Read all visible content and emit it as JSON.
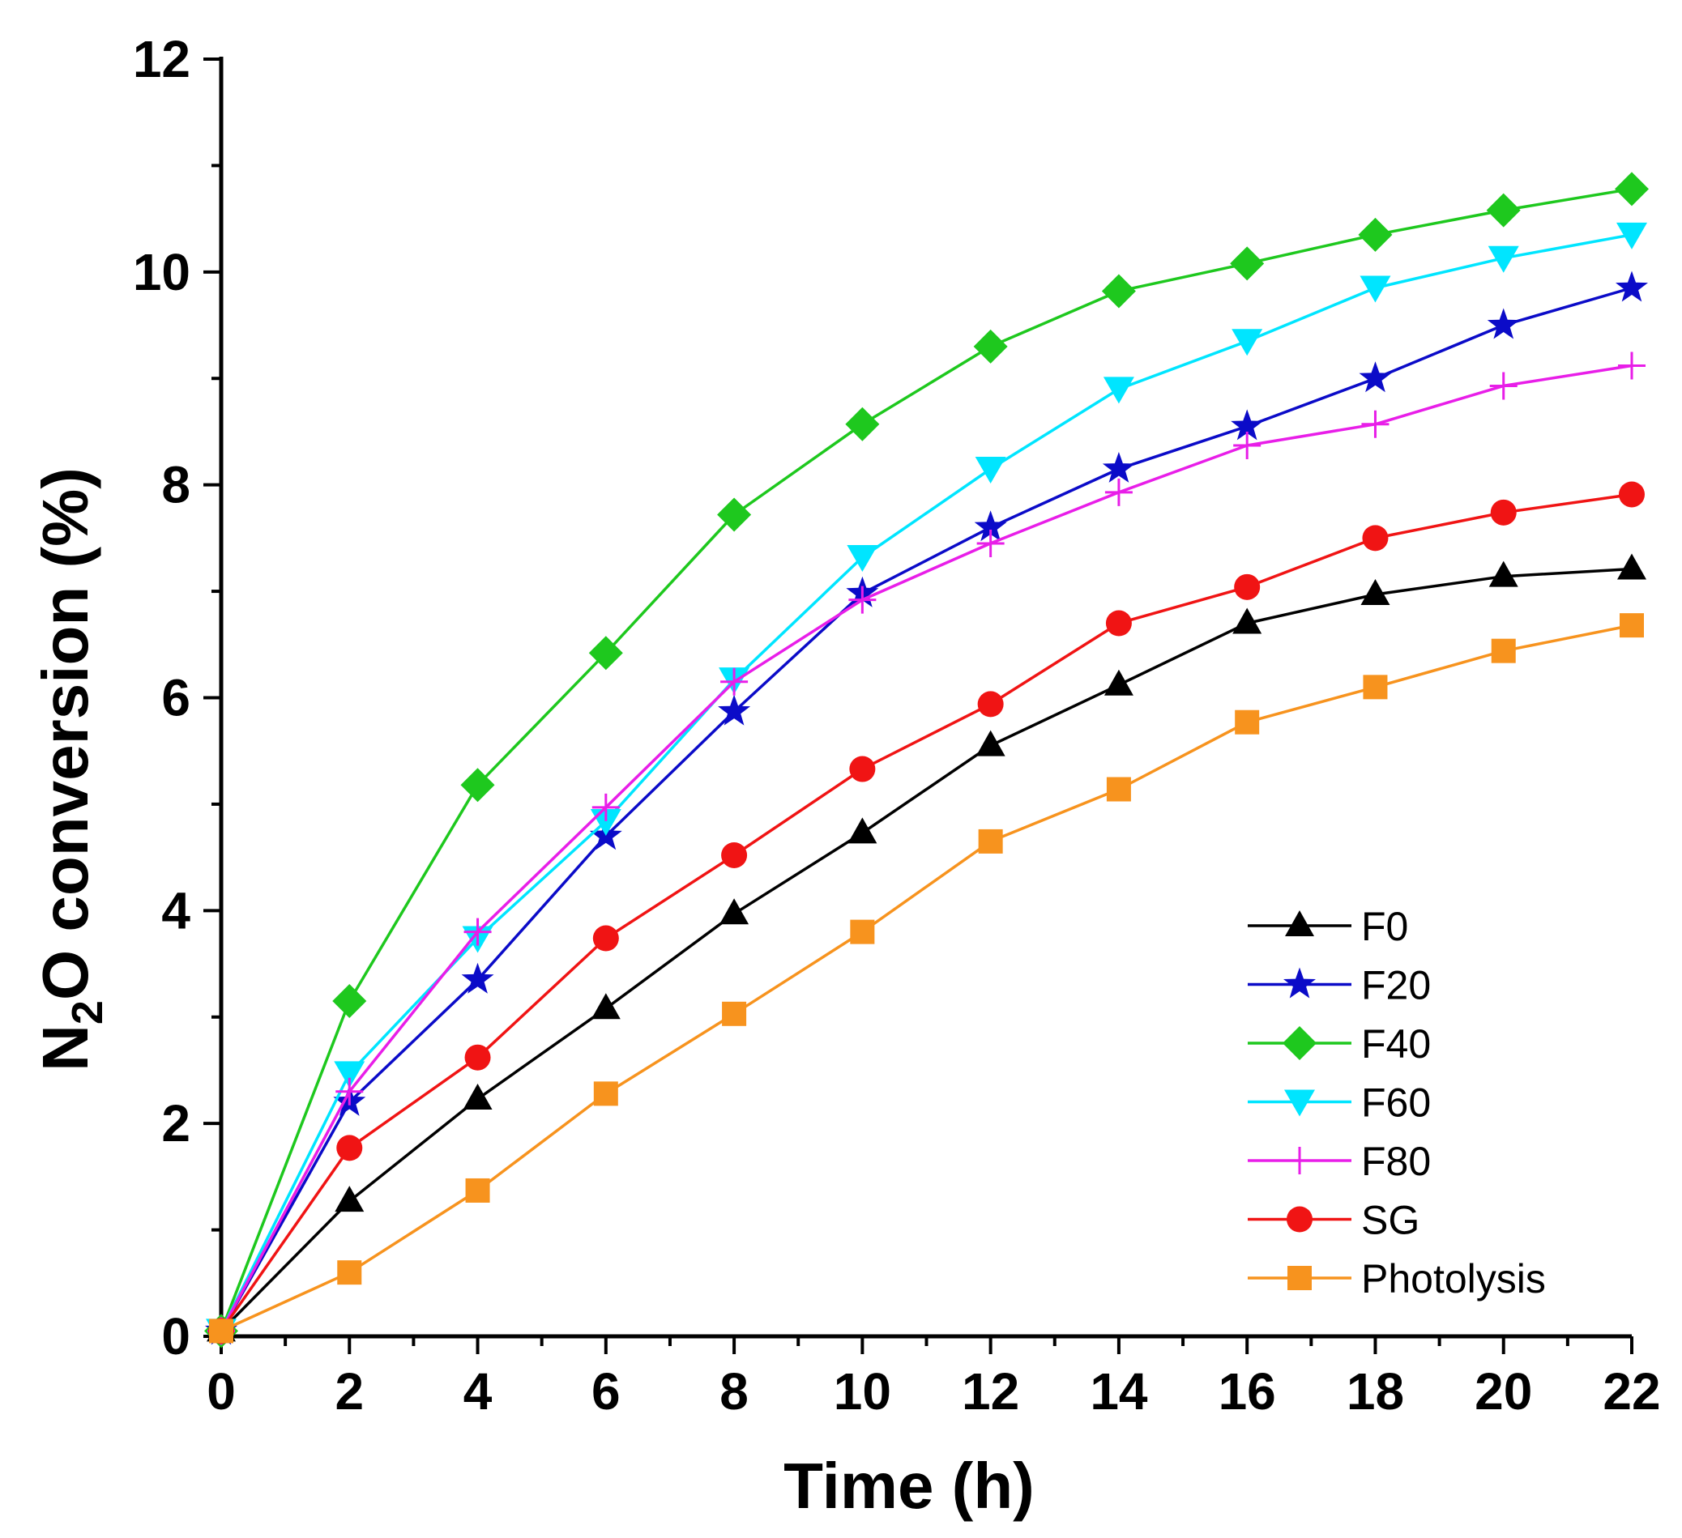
{
  "chart_data": {
    "type": "line",
    "title": "",
    "xlabel": "Time (h)",
    "ylabel": {
      "prefix": "N",
      "sub": "2",
      "suffix": "O conversion (%)"
    },
    "xlim": [
      0,
      22
    ],
    "ylim": [
      0,
      12
    ],
    "xticks": [
      "0",
      "2",
      "4",
      "6",
      "8",
      "10",
      "12",
      "14",
      "16",
      "18",
      "20",
      "22"
    ],
    "yticks": [
      "0",
      "2",
      "4",
      "6",
      "8",
      "10",
      "12"
    ],
    "grid": false,
    "legend_position": "bottom-right",
    "x": [
      0,
      2,
      4,
      6,
      8,
      10,
      12,
      14,
      16,
      18,
      20,
      22
    ],
    "series": [
      {
        "name": "F0",
        "color": "#000000",
        "marker": "triangle-up",
        "values": [
          0.05,
          1.27,
          2.23,
          3.08,
          3.97,
          4.73,
          5.55,
          6.12,
          6.7,
          6.97,
          7.14,
          7.21
        ]
      },
      {
        "name": "F20",
        "color": "#0b0bc8",
        "marker": "star",
        "values": [
          0.05,
          2.2,
          3.35,
          4.7,
          5.87,
          6.98,
          7.6,
          8.15,
          8.55,
          9.0,
          9.5,
          9.85
        ]
      },
      {
        "name": "F40",
        "color": "#1ec81e",
        "marker": "diamond",
        "values": [
          0.05,
          3.15,
          5.18,
          6.42,
          7.72,
          8.57,
          9.3,
          9.82,
          10.08,
          10.35,
          10.58,
          10.78
        ]
      },
      {
        "name": "F60",
        "color": "#00e5ff",
        "marker": "triangle-down",
        "values": [
          0.05,
          2.47,
          3.74,
          4.84,
          6.17,
          7.32,
          8.15,
          8.9,
          9.35,
          9.85,
          10.13,
          10.35
        ]
      },
      {
        "name": "F80",
        "color": "#e81ee8",
        "marker": "plus",
        "values": [
          0.05,
          2.3,
          3.8,
          4.97,
          6.15,
          6.92,
          7.45,
          7.93,
          8.37,
          8.57,
          8.93,
          9.12
        ]
      },
      {
        "name": "SG",
        "color": "#f01414",
        "marker": "circle",
        "values": [
          0.05,
          1.77,
          2.62,
          3.74,
          4.52,
          5.33,
          5.94,
          6.7,
          7.04,
          7.5,
          7.74,
          7.91
        ]
      },
      {
        "name": "Photolysis",
        "color": "#f7931e",
        "marker": "square",
        "values": [
          0.05,
          0.6,
          1.37,
          2.28,
          3.03,
          3.8,
          4.65,
          5.14,
          5.77,
          6.1,
          6.44,
          6.68
        ]
      }
    ]
  }
}
